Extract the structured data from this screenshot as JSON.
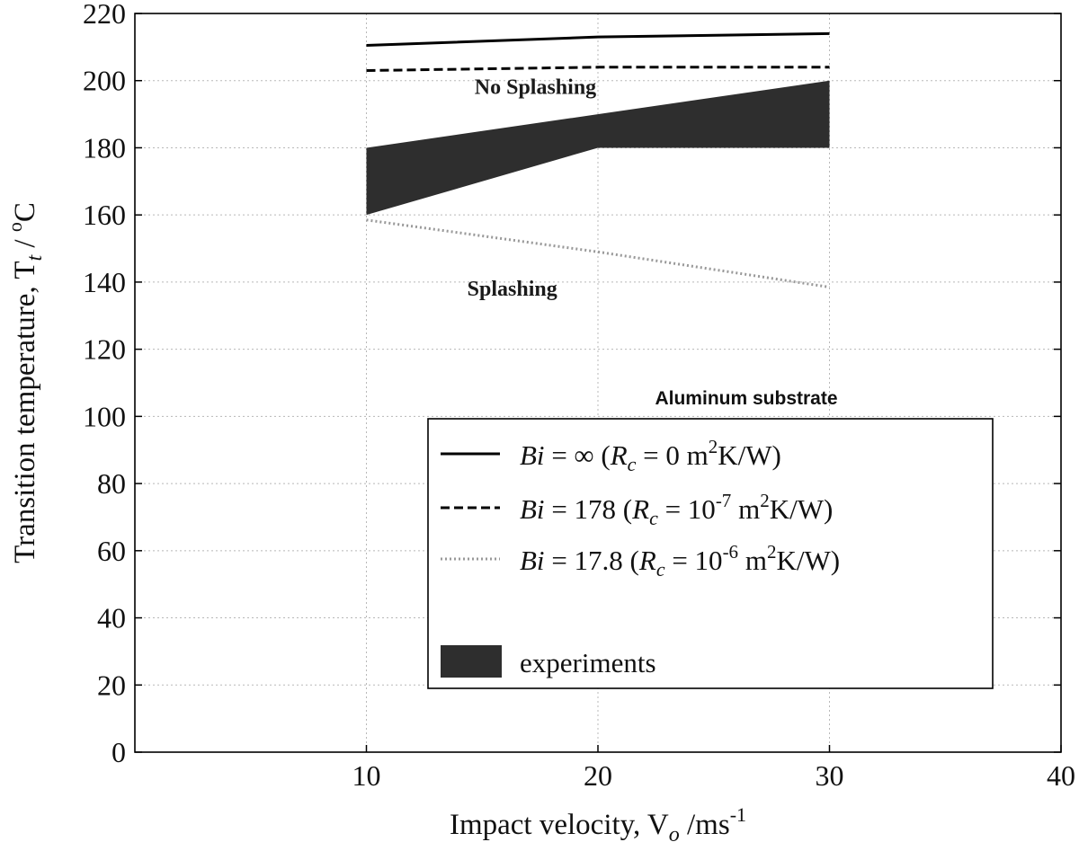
{
  "chart_data": {
    "type": "line",
    "title": "",
    "xlabel": "Impact velocity, V",
    "xlabel_sub": "o",
    "xlabel_unit": " /ms",
    "xlabel_sup": "-1",
    "ylabel": "Transition temperature, T",
    "ylabel_sub": "t",
    "ylabel_unit": " / ",
    "ylabel_sup": "o",
    "ylabel_unit2": "C",
    "xlim": [
      0,
      40
    ],
    "ylim": [
      0,
      220
    ],
    "xticks": [
      10,
      20,
      30,
      40
    ],
    "yticks": [
      0,
      20,
      40,
      60,
      80,
      100,
      120,
      140,
      160,
      180,
      200,
      220
    ],
    "grid": true,
    "legend_position": "lower-right",
    "legend_title": "Aluminum substrate",
    "series": [
      {
        "name_prefix": "Bi",
        "name_value": " = ∞ (",
        "name_rc": "R",
        "name_rc_sub": "c",
        "name_rc_value": " = 0 m",
        "name_sup": "2",
        "name_suffix": "K/W)",
        "style": "solid",
        "color": "#000000",
        "x": [
          10,
          20,
          30
        ],
        "y": [
          210.5,
          213,
          214
        ]
      },
      {
        "name_prefix": "Bi",
        "name_value": " = 178 (",
        "name_rc": "R",
        "name_rc_sub": "c",
        "name_rc_value": " = 10",
        "name_exp": "-7",
        "name_unit": " m",
        "name_sup": "2",
        "name_suffix": "K/W)",
        "style": "dashed",
        "color": "#000000",
        "x": [
          10,
          20,
          30
        ],
        "y": [
          203,
          204,
          204
        ]
      },
      {
        "name_prefix": "Bi",
        "name_value": " = 17.8 (",
        "name_rc": "R",
        "name_rc_sub": "c",
        "name_rc_value": " = 10",
        "name_exp": "-6",
        "name_unit": " m",
        "name_sup": "2",
        "name_suffix": "K/W)",
        "style": "dotted",
        "color": "#999999",
        "x": [
          10,
          20,
          30
        ],
        "y": [
          158.5,
          149,
          138.5
        ]
      }
    ],
    "band": {
      "name": "experiments",
      "color": "#2e2e2e",
      "upper": {
        "x": [
          10,
          30
        ],
        "y": [
          180,
          200
        ]
      },
      "lower": {
        "x": [
          10,
          20,
          30
        ],
        "y": [
          160,
          180,
          180
        ]
      }
    },
    "annotations": [
      {
        "text": "No Splashing",
        "x": 17.3,
        "y": 196
      },
      {
        "text": "Splashing",
        "x": 16.3,
        "y": 136
      }
    ]
  }
}
